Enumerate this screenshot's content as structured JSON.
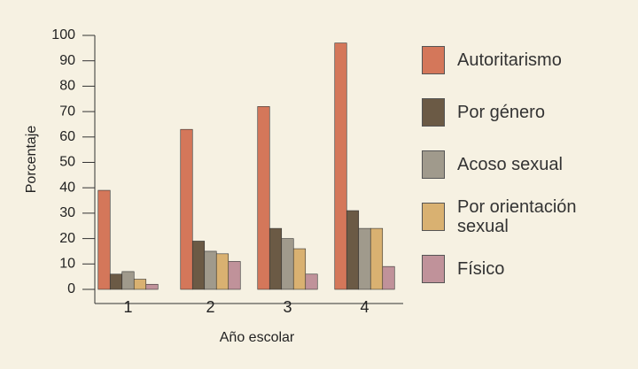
{
  "chart_data": {
    "type": "bar",
    "x_label": "Año escolar",
    "y_label": "Porcentaje",
    "categories": [
      "1",
      "2",
      "3",
      "4"
    ],
    "series": [
      {
        "name": "Autoritarismo",
        "color": "#d4775a",
        "values": [
          39,
          63,
          72,
          97
        ]
      },
      {
        "name": "Por género",
        "color": "#6b5a45",
        "values": [
          6,
          19,
          24,
          31
        ]
      },
      {
        "name": "Acoso sexual",
        "color": "#a09a8c",
        "values": [
          7,
          15,
          20,
          24
        ]
      },
      {
        "name": "Por orientación sexual",
        "color": "#d9b171",
        "values": [
          4,
          14,
          16,
          24
        ]
      },
      {
        "name": "Físico",
        "color": "#c0929a",
        "values": [
          2,
          11,
          6,
          9
        ]
      }
    ],
    "ylim": [
      0,
      100
    ],
    "yticks": [
      0,
      10,
      20,
      30,
      40,
      50,
      60,
      70,
      80,
      90,
      100
    ],
    "legend": "right"
  }
}
